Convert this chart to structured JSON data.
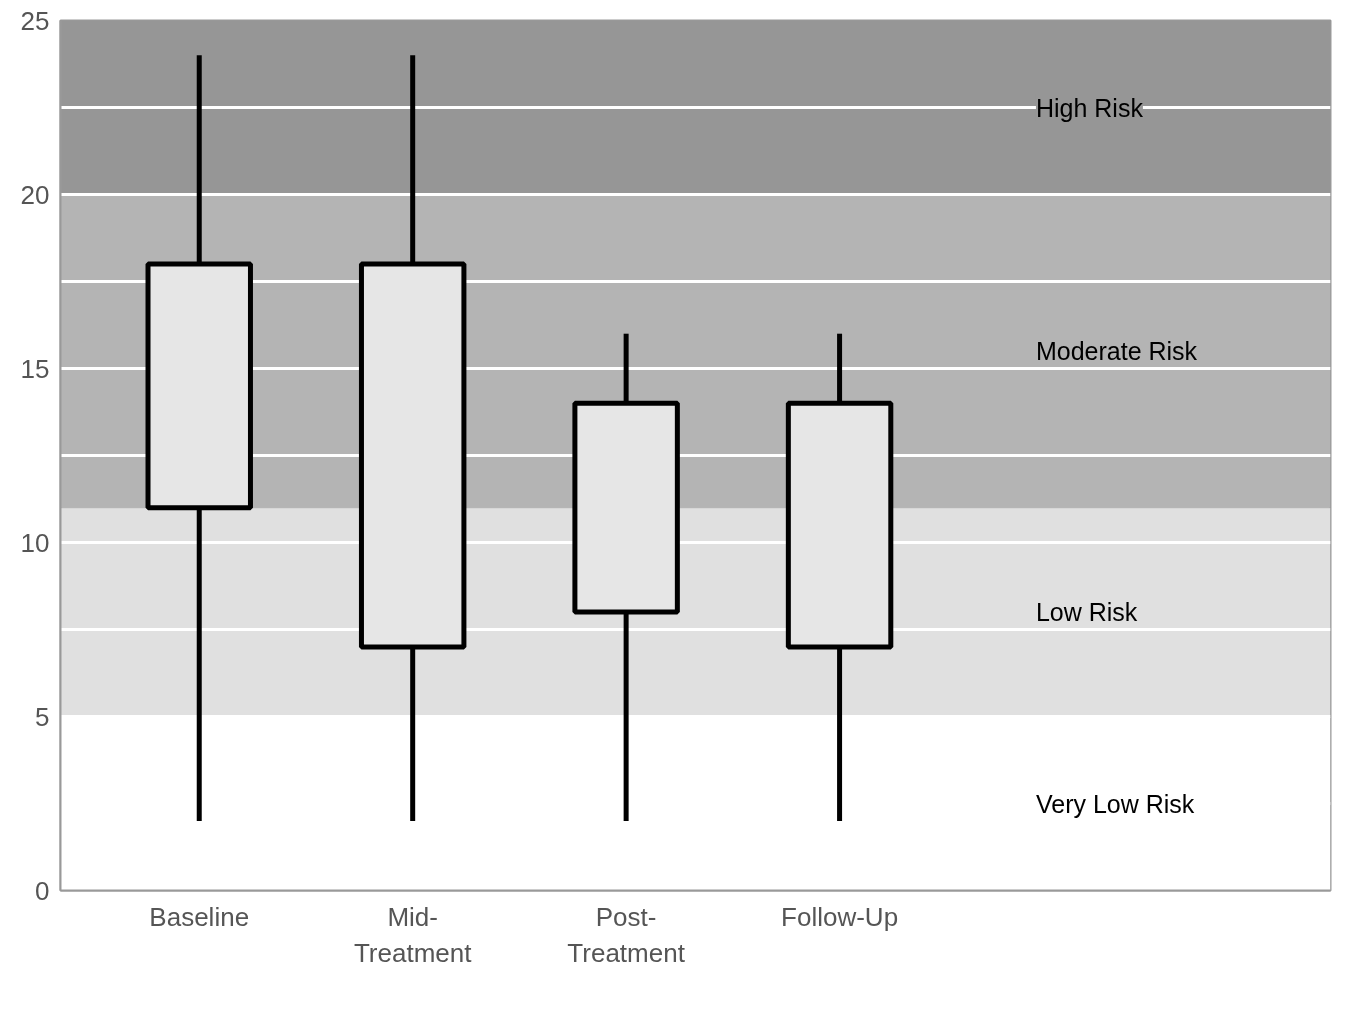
{
  "chart_data": {
    "type": "box",
    "categories": [
      "Baseline",
      "Mid-\nTreatment",
      "Post-\nTreatment",
      "Follow-Up"
    ],
    "boxes": [
      {
        "low": 2,
        "q1": 11,
        "q3": 18,
        "high": 24
      },
      {
        "low": 2,
        "q1": 7,
        "q3": 18,
        "high": 24
      },
      {
        "low": 2,
        "q1": 8,
        "q3": 14,
        "high": 16
      },
      {
        "low": 2,
        "q1": 7,
        "q3": 14,
        "high": 16
      }
    ],
    "color": "#e6e6e6",
    "ylim": [
      0,
      25
    ],
    "yticks": [
      0,
      {
        "value": 2.5,
        "label": null
      },
      5,
      {
        "value": 7.5,
        "label": null
      },
      10,
      {
        "value": 12.5,
        "label": null
      },
      15,
      {
        "value": 17.5,
        "label": null
      },
      20,
      {
        "value": 22.5,
        "label": null
      },
      25
    ],
    "grid": "y",
    "bands": [
      {
        "axis": "y",
        "from": 0,
        "to": 5,
        "label": "Very Low Risk",
        "color": "#ffffff"
      },
      {
        "axis": "y",
        "from": 5,
        "to": 11,
        "label": "Low Risk",
        "color": "#e0e0e0"
      },
      {
        "axis": "y",
        "from": 11,
        "to": 20,
        "label": "Moderate Risk",
        "color": "#b4b4b4"
      },
      {
        "axis": "y",
        "from": 20,
        "to": 25,
        "label": "High Risk",
        "color": "#969696"
      }
    ]
  }
}
